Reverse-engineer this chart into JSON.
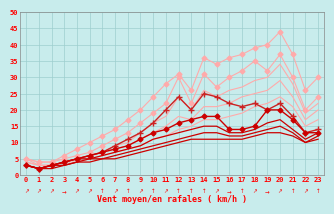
{
  "title": "",
  "xlabel": "Vent moyen/en rafales ( km/h )",
  "ylabel": "",
  "xlim": [
    -0.5,
    23.5
  ],
  "ylim": [
    0,
    50
  ],
  "yticks": [
    0,
    5,
    10,
    15,
    20,
    25,
    30,
    35,
    40,
    45,
    50
  ],
  "xticks": [
    0,
    1,
    2,
    3,
    4,
    5,
    6,
    7,
    8,
    9,
    10,
    11,
    12,
    13,
    14,
    15,
    16,
    17,
    18,
    19,
    20,
    21,
    22,
    23
  ],
  "bg_color": "#c8ecec",
  "grid_color": "#9ecece",
  "lines": [
    {
      "x": [
        0,
        1,
        2,
        3,
        4,
        5,
        6,
        7,
        8,
        9,
        10,
        11,
        12,
        13,
        14,
        15,
        16,
        17,
        18,
        19,
        20,
        21,
        22,
        23
      ],
      "y": [
        5,
        4,
        4,
        5,
        6,
        7,
        9,
        11,
        13,
        16,
        19,
        22,
        30,
        22,
        31,
        27,
        30,
        32,
        35,
        32,
        37,
        30,
        20,
        24
      ],
      "color": "#ffaaaa",
      "marker": "D",
      "lw": 0.8,
      "ms": 2.5
    },
    {
      "x": [
        0,
        1,
        2,
        3,
        4,
        5,
        6,
        7,
        8,
        9,
        10,
        11,
        12,
        13,
        14,
        15,
        16,
        17,
        18,
        19,
        20,
        21,
        22,
        23
      ],
      "y": [
        5,
        4,
        4,
        6,
        8,
        10,
        12,
        14,
        17,
        20,
        24,
        28,
        31,
        26,
        36,
        34,
        36,
        37,
        39,
        40,
        44,
        37,
        26,
        30
      ],
      "color": "#ffaaaa",
      "marker": "D",
      "lw": 0.8,
      "ms": 2.5
    },
    {
      "x": [
        0,
        1,
        2,
        3,
        4,
        5,
        6,
        7,
        8,
        9,
        10,
        11,
        12,
        13,
        14,
        15,
        16,
        17,
        18,
        19,
        20,
        21,
        22,
        23
      ],
      "y": [
        5,
        3,
        3,
        4,
        5,
        6,
        7,
        9,
        10,
        13,
        16,
        18,
        24,
        20,
        26,
        24,
        26,
        27,
        29,
        30,
        34,
        28,
        19,
        22
      ],
      "color": "#ffaaaa",
      "marker": null,
      "lw": 0.8,
      "ms": 0
    },
    {
      "x": [
        0,
        1,
        2,
        3,
        4,
        5,
        6,
        7,
        8,
        9,
        10,
        11,
        12,
        13,
        14,
        15,
        16,
        17,
        18,
        19,
        20,
        21,
        22,
        23
      ],
      "y": [
        4,
        3,
        3,
        4,
        5,
        6,
        7,
        8,
        9,
        11,
        13,
        15,
        18,
        17,
        21,
        21,
        22,
        24,
        25,
        26,
        29,
        24,
        17,
        20
      ],
      "color": "#ffaaaa",
      "marker": null,
      "lw": 0.8,
      "ms": 0
    },
    {
      "x": [
        0,
        1,
        2,
        3,
        4,
        5,
        6,
        7,
        8,
        9,
        10,
        11,
        12,
        13,
        14,
        15,
        16,
        17,
        18,
        19,
        20,
        21,
        22,
        23
      ],
      "y": [
        4,
        3,
        3,
        4,
        4,
        5,
        6,
        7,
        8,
        9,
        11,
        12,
        14,
        15,
        17,
        17,
        18,
        19,
        21,
        22,
        24,
        21,
        15,
        17
      ],
      "color": "#ffaaaa",
      "marker": null,
      "lw": 0.8,
      "ms": 0
    },
    {
      "x": [
        0,
        1,
        2,
        3,
        4,
        5,
        6,
        7,
        8,
        9,
        10,
        11,
        12,
        13,
        14,
        15,
        16,
        17,
        18,
        19,
        20,
        21,
        22,
        23
      ],
      "y": [
        3,
        2,
        3,
        4,
        5,
        6,
        7,
        9,
        11,
        13,
        16,
        20,
        24,
        20,
        25,
        24,
        22,
        21,
        22,
        20,
        22,
        18,
        13,
        14
      ],
      "color": "#cc2222",
      "marker": "+",
      "lw": 1.0,
      "ms": 4
    },
    {
      "x": [
        0,
        1,
        2,
        3,
        4,
        5,
        6,
        7,
        8,
        9,
        10,
        11,
        12,
        13,
        14,
        15,
        16,
        17,
        18,
        19,
        20,
        21,
        22,
        23
      ],
      "y": [
        3,
        2,
        3,
        4,
        5,
        6,
        7,
        8,
        9,
        11,
        13,
        14,
        16,
        17,
        18,
        18,
        14,
        14,
        15,
        20,
        20,
        17,
        13,
        13
      ],
      "color": "#cc0000",
      "marker": "D",
      "lw": 1.0,
      "ms": 2.5
    },
    {
      "x": [
        0,
        1,
        2,
        3,
        4,
        5,
        6,
        7,
        8,
        9,
        10,
        11,
        12,
        13,
        14,
        15,
        16,
        17,
        18,
        19,
        20,
        21,
        22,
        23
      ],
      "y": [
        3,
        2,
        3,
        4,
        5,
        5,
        6,
        7,
        8,
        9,
        11,
        12,
        13,
        14,
        15,
        15,
        13,
        13,
        14,
        16,
        17,
        14,
        11,
        13
      ],
      "color": "#cc0000",
      "marker": null,
      "lw": 0.9,
      "ms": 0
    },
    {
      "x": [
        0,
        1,
        2,
        3,
        4,
        5,
        6,
        7,
        8,
        9,
        10,
        11,
        12,
        13,
        14,
        15,
        16,
        17,
        18,
        19,
        20,
        21,
        22,
        23
      ],
      "y": [
        3,
        2,
        3,
        3,
        4,
        5,
        5,
        6,
        7,
        8,
        9,
        10,
        11,
        12,
        13,
        13,
        12,
        12,
        13,
        14,
        15,
        13,
        10,
        12
      ],
      "color": "#cc0000",
      "marker": null,
      "lw": 0.9,
      "ms": 0
    },
    {
      "x": [
        0,
        1,
        2,
        3,
        4,
        5,
        6,
        7,
        8,
        9,
        10,
        11,
        12,
        13,
        14,
        15,
        16,
        17,
        18,
        19,
        20,
        21,
        22,
        23
      ],
      "y": [
        3,
        2,
        2,
        3,
        4,
        4,
        5,
        5,
        6,
        7,
        8,
        9,
        10,
        11,
        11,
        11,
        11,
        11,
        12,
        13,
        13,
        12,
        10,
        11
      ],
      "color": "#cc0000",
      "marker": null,
      "lw": 0.9,
      "ms": 0
    }
  ],
  "arrow_row": [
    "↗",
    "↗",
    "↗",
    "→",
    "↗",
    "↗",
    "↑",
    "↗",
    "↑",
    "↗",
    "↑",
    "↗",
    "↑",
    "↑",
    "↑",
    "↗",
    "→",
    "↑",
    "↗",
    "→",
    "↗",
    "↑",
    "↗",
    "↑"
  ]
}
